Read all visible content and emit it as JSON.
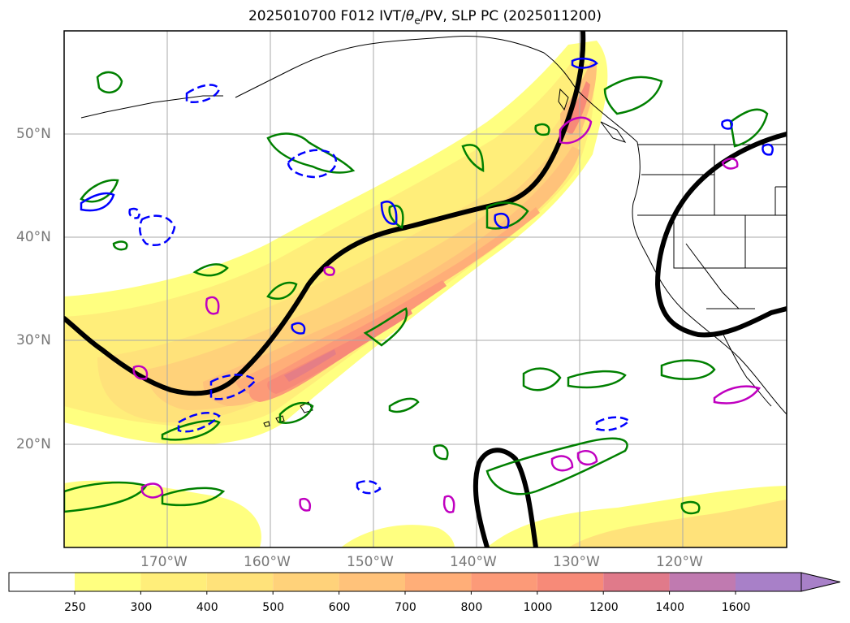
{
  "title_prefix": "2025010700 F012 IVT/",
  "title_theta": "θ",
  "title_sub": "e",
  "title_suffix": "/PV, SLP PC (2025011200)",
  "lat_labels": [
    "50°N",
    "40°N",
    "30°N",
    "20°N"
  ],
  "lon_labels": [
    "170°W",
    "160°W",
    "150°W",
    "140°W",
    "130°W",
    "120°W"
  ],
  "colorbar": {
    "levels": [
      "250",
      "300",
      "400",
      "500",
      "600",
      "700",
      "800",
      "1000",
      "1200",
      "1400",
      "1600"
    ],
    "colors": [
      "#ffff80",
      "#ffee7a",
      "#ffe27a",
      "#ffd27a",
      "#ffc27a",
      "#ffae78",
      "#fc9a78",
      "#f78a78",
      "#e07a8a",
      "#c07ab0",
      "#a880c8"
    ],
    "extend": "max"
  },
  "legend_colors": {
    "slp_contour": "#000000",
    "theta_e": "#008000",
    "pv_negative": "#0000ff",
    "pv_positive": "#c000c0"
  }
}
